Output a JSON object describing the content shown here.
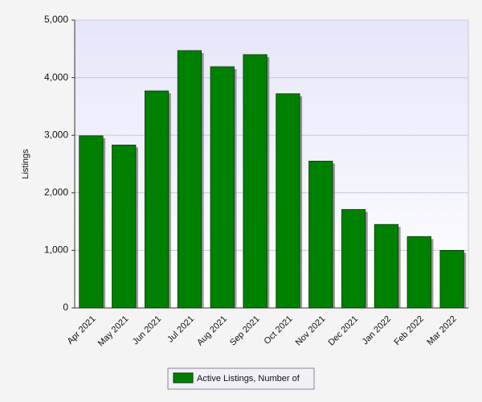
{
  "chart_data": {
    "type": "bar",
    "y_axis_label": "Listings",
    "categories": [
      "Apr 2021",
      "May 2021",
      "Jun 2021",
      "Jul 2021",
      "Aug 2021",
      "Sep 2021",
      "Oct 2021",
      "Nov 2021",
      "Dec 2021",
      "Jan 2022",
      "Feb 2022",
      "Mar 2022"
    ],
    "series": [
      {
        "name": "Active Listings, Number of",
        "color": "#008000",
        "values": [
          2990,
          2830,
          3770,
          4470,
          4190,
          4400,
          3720,
          2550,
          1710,
          1450,
          1240,
          1000
        ]
      }
    ],
    "ylim": [
      0,
      5000
    ],
    "yticks": [
      0,
      {
        "value": 1000,
        "label": "1,000"
      },
      {
        "value": 2000,
        "label": "2,000"
      },
      {
        "value": 3000,
        "label": "3,000"
      },
      {
        "value": 4000,
        "label": "4,000"
      },
      {
        "value": 5000,
        "label": "5,000"
      }
    ],
    "grid": true,
    "legend": "bottom"
  }
}
